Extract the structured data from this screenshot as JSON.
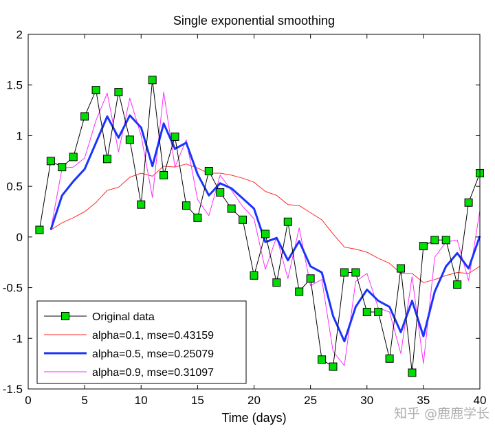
{
  "chart_data": {
    "type": "line",
    "title": "Single exponential smoothing",
    "xlabel": "Time (days)",
    "ylabel": "",
    "xlim": [
      0,
      40
    ],
    "ylim": [
      -1.5,
      2
    ],
    "xticks": [
      0,
      5,
      10,
      15,
      20,
      25,
      30,
      35,
      40
    ],
    "yticks": [
      -1.5,
      -1,
      -0.5,
      0,
      0.5,
      1,
      1.5,
      2
    ],
    "xtick_labels": [
      "0",
      "5",
      "10",
      "15",
      "20",
      "25",
      "30",
      "35",
      "40"
    ],
    "ytick_labels": [
      "-1.5",
      "-1",
      "-0.5",
      "0",
      "0.5",
      "1",
      "1.5",
      "2"
    ],
    "grid": false,
    "legend_position": "bottom-left",
    "series": [
      {
        "name": "Original data",
        "color": "#000000",
        "marker_color": "#00dd00",
        "marker": "square",
        "x": [
          1,
          2,
          3,
          4,
          5,
          6,
          7,
          8,
          9,
          10,
          11,
          12,
          13,
          14,
          15,
          16,
          17,
          18,
          19,
          20,
          21,
          22,
          23,
          24,
          25,
          26,
          27,
          28,
          29,
          30,
          31,
          32,
          33,
          34,
          35,
          36,
          37,
          38,
          39,
          40
        ],
        "values": [
          0.07,
          0.75,
          0.69,
          0.79,
          1.19,
          1.45,
          0.77,
          1.43,
          0.96,
          0.32,
          1.55,
          0.61,
          0.99,
          0.31,
          0.19,
          0.65,
          0.44,
          0.28,
          0.17,
          -0.38,
          0.03,
          -0.45,
          0.15,
          -0.54,
          -0.41,
          -1.21,
          -1.28,
          -0.35,
          -0.35,
          -0.74,
          -0.74,
          -1.2,
          -0.31,
          -1.34,
          -0.09,
          -0.03,
          -0.03,
          -0.47,
          0.34,
          0.63
        ]
      },
      {
        "name": "alpha=0.1, mse=0.43159",
        "color": "#ff2a2a",
        "width": 1,
        "x": [
          2,
          3,
          4,
          5,
          6,
          7,
          8,
          9,
          10,
          11,
          12,
          13,
          14,
          15,
          16,
          17,
          18,
          19,
          20,
          21,
          22,
          23,
          24,
          25,
          26,
          27,
          28,
          29,
          30,
          31,
          32,
          33,
          34,
          35,
          36,
          37,
          38,
          39,
          40
        ],
        "values": [
          0.07,
          0.14,
          0.19,
          0.25,
          0.34,
          0.46,
          0.49,
          0.59,
          0.63,
          0.6,
          0.7,
          0.69,
          0.72,
          0.68,
          0.63,
          0.63,
          0.61,
          0.58,
          0.54,
          0.45,
          0.41,
          0.32,
          0.31,
          0.24,
          0.17,
          0.03,
          -0.1,
          -0.12,
          -0.15,
          -0.21,
          -0.26,
          -0.36,
          -0.36,
          -0.45,
          -0.42,
          -0.38,
          -0.35,
          -0.36,
          -0.29
        ]
      },
      {
        "name": "alpha=0.5, mse=0.25079",
        "color": "#1a33ff",
        "width": 3,
        "x": [
          2,
          3,
          4,
          5,
          6,
          7,
          8,
          9,
          10,
          11,
          12,
          13,
          14,
          15,
          16,
          17,
          18,
          19,
          20,
          21,
          22,
          23,
          24,
          25,
          26,
          27,
          28,
          29,
          30,
          31,
          32,
          33,
          34,
          35,
          36,
          37,
          38,
          39,
          40
        ],
        "values": [
          0.07,
          0.41,
          0.55,
          0.67,
          0.93,
          1.19,
          0.98,
          1.2,
          1.08,
          0.7,
          1.12,
          0.87,
          0.93,
          0.62,
          0.41,
          0.53,
          0.48,
          0.38,
          0.28,
          -0.05,
          -0.01,
          -0.23,
          -0.04,
          -0.29,
          -0.35,
          -0.78,
          -1.03,
          -0.69,
          -0.52,
          -0.63,
          -0.69,
          -0.94,
          -0.63,
          -0.98,
          -0.54,
          -0.29,
          -0.16,
          -0.31,
          0.01
        ]
      },
      {
        "name": "alpha=0.9, mse=0.31097",
        "color": "#ff2aff",
        "width": 1,
        "x": [
          2,
          3,
          4,
          5,
          6,
          7,
          8,
          9,
          10,
          11,
          12,
          13,
          14,
          15,
          16,
          17,
          18,
          19,
          20,
          21,
          22,
          23,
          24,
          25,
          26,
          27,
          28,
          29,
          30,
          31,
          32,
          33,
          34,
          35,
          36,
          37,
          38,
          39,
          40
        ],
        "values": [
          0.07,
          0.68,
          0.69,
          0.78,
          1.15,
          1.42,
          0.84,
          1.37,
          1.0,
          0.39,
          1.43,
          0.69,
          0.96,
          0.37,
          0.21,
          0.61,
          0.46,
          0.3,
          0.18,
          -0.32,
          -0.0,
          -0.41,
          0.09,
          -0.48,
          -0.42,
          -1.13,
          -1.27,
          -0.44,
          -0.36,
          -0.7,
          -0.74,
          -1.15,
          -0.39,
          -1.25,
          -0.2,
          -0.05,
          -0.03,
          -0.43,
          0.26
        ]
      }
    ]
  },
  "watermark": "知乎 @鹿鹿学长"
}
